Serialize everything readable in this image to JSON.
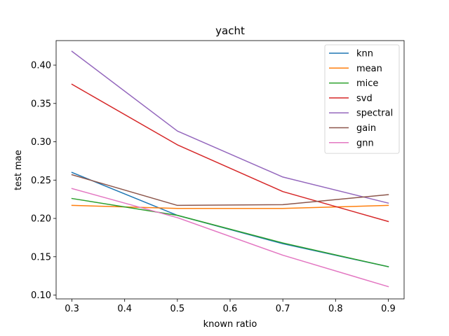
{
  "chart_data": {
    "type": "line",
    "title": "yacht",
    "xlabel": "known ratio",
    "ylabel": "test mae",
    "xlim": [
      0.27,
      0.93
    ],
    "ylim": [
      0.095,
      0.432
    ],
    "x": [
      0.3,
      0.5,
      0.7,
      0.9
    ],
    "xticks": [
      0.3,
      0.4,
      0.5,
      0.6,
      0.7,
      0.8,
      0.9
    ],
    "xtick_labels": [
      "0.3",
      "0.4",
      "0.5",
      "0.6",
      "0.7",
      "0.8",
      "0.9"
    ],
    "yticks": [
      0.1,
      0.15,
      0.2,
      0.25,
      0.3,
      0.35,
      0.4
    ],
    "ytick_labels": [
      "0.10",
      "0.15",
      "0.20",
      "0.25",
      "0.30",
      "0.35",
      "0.40"
    ],
    "grid": false,
    "legend_position": "top-right",
    "series": [
      {
        "name": "knn",
        "color": "#1f77b4",
        "values": [
          0.26,
          0.204,
          0.167,
          0.137
        ]
      },
      {
        "name": "mean",
        "color": "#ff7f0e",
        "values": [
          0.217,
          0.213,
          0.213,
          0.217
        ]
      },
      {
        "name": "mice",
        "color": "#2ca02c",
        "values": [
          0.226,
          0.204,
          0.168,
          0.137
        ]
      },
      {
        "name": "svd",
        "color": "#d62728",
        "values": [
          0.375,
          0.296,
          0.235,
          0.196
        ]
      },
      {
        "name": "spectral",
        "color": "#9467bd",
        "values": [
          0.418,
          0.314,
          0.254,
          0.22
        ]
      },
      {
        "name": "gain",
        "color": "#8c564b",
        "values": [
          0.257,
          0.217,
          0.218,
          0.231
        ]
      },
      {
        "name": "gnn",
        "color": "#e377c2",
        "values": [
          0.239,
          0.201,
          0.152,
          0.111
        ]
      }
    ]
  }
}
